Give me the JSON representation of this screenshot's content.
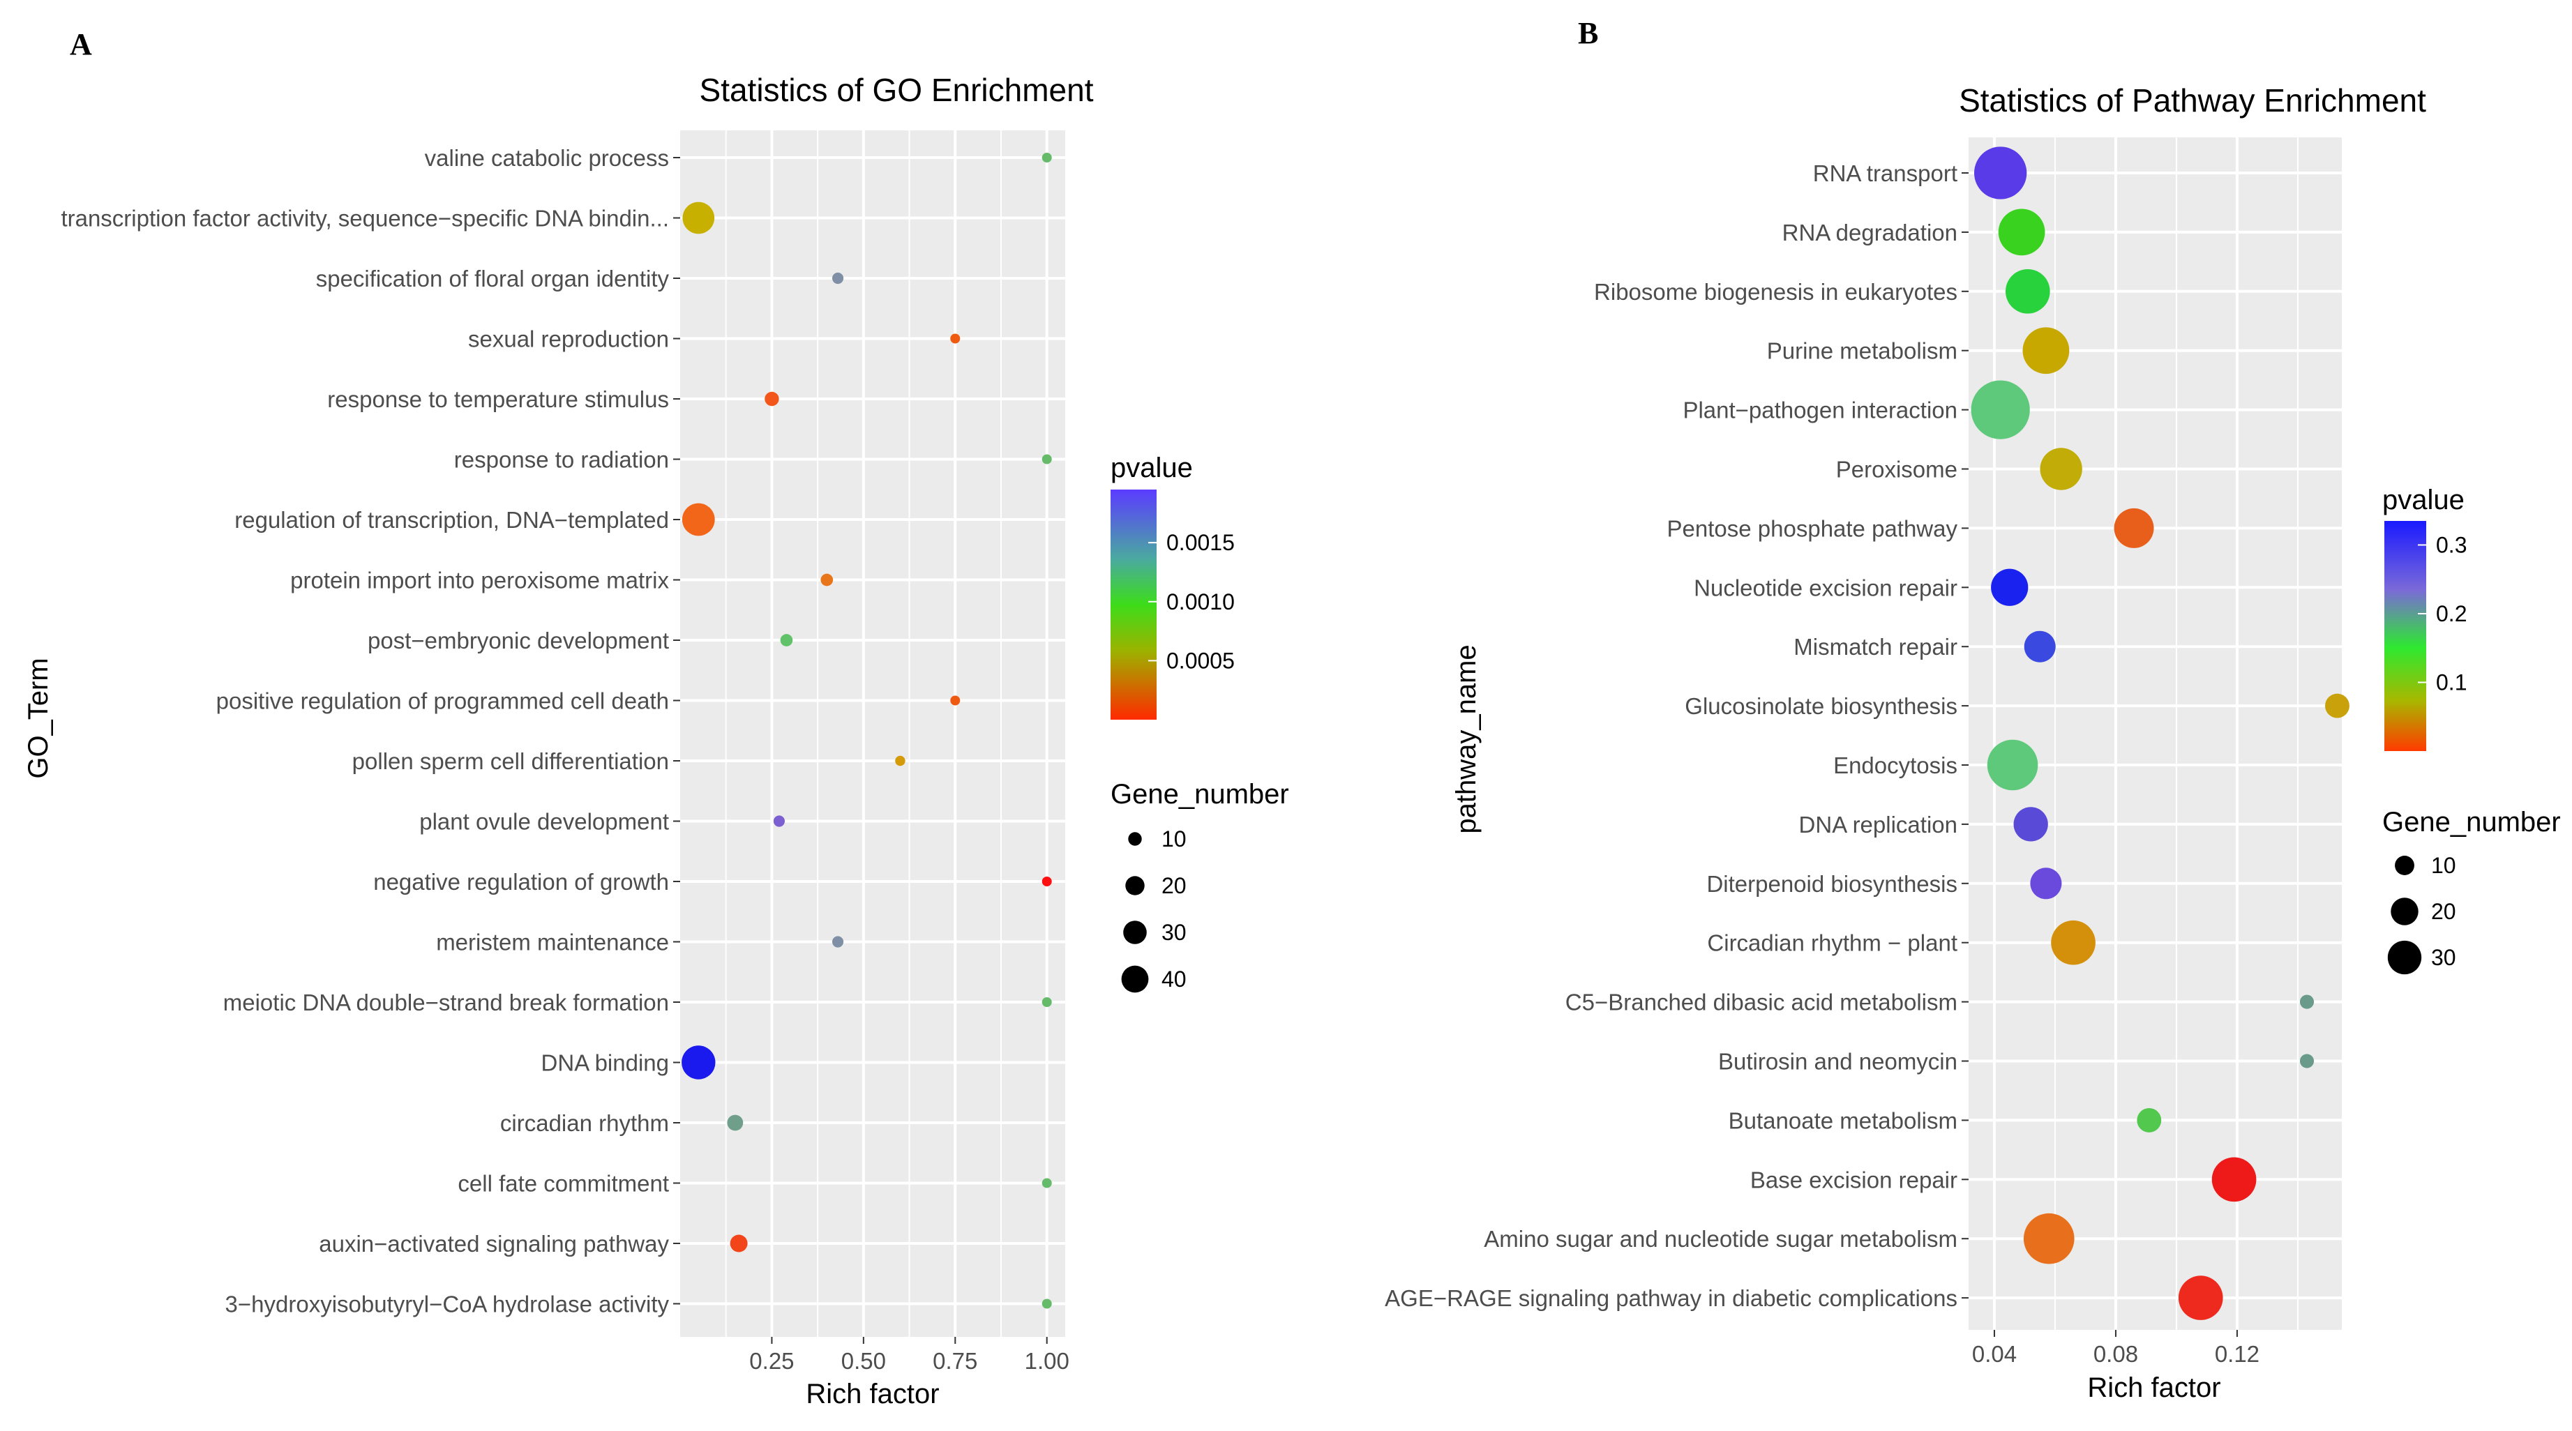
{
  "chart_data": [
    {
      "panel": "A",
      "type": "scatter",
      "title": "Statistics of GO Enrichment",
      "xlabel": "Rich factor",
      "ylabel": "GO_Term",
      "xlim": [
        0.0,
        1.05
      ],
      "xticks": [
        0.25,
        0.5,
        0.75,
        1.0
      ],
      "xtick_labels": [
        "0.25",
        "0.50",
        "0.75",
        "1.00"
      ],
      "color_legend": {
        "title": "pvalue",
        "ticks": [
          0.0015,
          0.001,
          0.0005
        ],
        "tick_labels": [
          "0.0015",
          "0.0010",
          "0.0005"
        ]
      },
      "size_legend": {
        "title": "Gene_number",
        "values": [
          10,
          20,
          30,
          40
        ]
      },
      "points": [
        {
          "term": "valine catabolic process",
          "rich": 1.0,
          "pvalue": 0.00095,
          "genes": 1,
          "color": "#66bb6a"
        },
        {
          "term": "transcription factor activity, sequence−specific DNA bindin...",
          "rich": 0.05,
          "pvalue": 0.00055,
          "genes": 40,
          "color": "#c7b000"
        },
        {
          "term": "specification of floral organ identity",
          "rich": 0.43,
          "pvalue": 0.0013,
          "genes": 5,
          "color": "#7f8fa6"
        },
        {
          "term": "sexual reproduction",
          "rich": 0.75,
          "pvalue": 0.0002,
          "genes": 3,
          "color": "#ee5a12"
        },
        {
          "term": "response to temperature stimulus",
          "rich": 0.25,
          "pvalue": 0.0002,
          "genes": 8,
          "color": "#f2561a"
        },
        {
          "term": "response to radiation",
          "rich": 1.0,
          "pvalue": 0.00095,
          "genes": 1,
          "color": "#66bb6a"
        },
        {
          "term": "regulation of transcription, DNA−templated",
          "rich": 0.05,
          "pvalue": 0.0002,
          "genes": 42,
          "color": "#f2661a"
        },
        {
          "term": "protein import into peroxisome matrix",
          "rich": 0.4,
          "pvalue": 0.0003,
          "genes": 6,
          "color": "#e8751a"
        },
        {
          "term": "post−embryonic development",
          "rich": 0.29,
          "pvalue": 0.001,
          "genes": 6,
          "color": "#62c26a"
        },
        {
          "term": "positive regulation of programmed cell death",
          "rich": 0.75,
          "pvalue": 0.0002,
          "genes": 3,
          "color": "#ee5a12"
        },
        {
          "term": "pollen sperm cell differentiation",
          "rich": 0.6,
          "pvalue": 0.0004,
          "genes": 4,
          "color": "#d49a0a"
        },
        {
          "term": "plant ovule development",
          "rich": 0.27,
          "pvalue": 0.0016,
          "genes": 5,
          "color": "#7c5fd0"
        },
        {
          "term": "negative regulation of growth",
          "rich": 1.0,
          "pvalue": 1e-05,
          "genes": 3,
          "color": "#ff1010"
        },
        {
          "term": "meristem maintenance",
          "rich": 0.43,
          "pvalue": 0.0013,
          "genes": 5,
          "color": "#7f8fa6"
        },
        {
          "term": "meiotic DNA double−strand break formation",
          "rich": 1.0,
          "pvalue": 0.00095,
          "genes": 1,
          "color": "#66bb6a"
        },
        {
          "term": "DNA binding",
          "rich": 0.05,
          "pvalue": 0.0019,
          "genes": 45,
          "color": "#1a1aee"
        },
        {
          "term": "circadian rhythm",
          "rich": 0.15,
          "pvalue": 0.0012,
          "genes": 10,
          "color": "#6f9f8a"
        },
        {
          "term": "cell fate commitment",
          "rich": 1.0,
          "pvalue": 0.00095,
          "genes": 1,
          "color": "#66bb6a"
        },
        {
          "term": "auxin−activated signaling pathway",
          "rich": 0.16,
          "pvalue": 0.00015,
          "genes": 12,
          "color": "#f2461a"
        },
        {
          "term": "3−hydroxyisobutyryl−CoA hydrolase activity",
          "rich": 1.0,
          "pvalue": 0.00095,
          "genes": 1,
          "color": "#66bb6a"
        }
      ]
    },
    {
      "panel": "B",
      "type": "scatter",
      "title": "Statistics of Pathway Enrichment",
      "xlabel": "Rich factor",
      "ylabel": "pathway_name",
      "xlim": [
        0.0315,
        0.1545
      ],
      "xticks": [
        0.04,
        0.08,
        0.12
      ],
      "xtick_labels": [
        "0.04",
        "0.08",
        "0.12"
      ],
      "color_legend": {
        "title": "pvalue",
        "ticks": [
          0.3,
          0.2,
          0.1
        ],
        "tick_labels": [
          "0.3",
          "0.2",
          "0.1"
        ]
      },
      "size_legend": {
        "title": "Gene_number",
        "values": [
          10,
          20,
          30
        ]
      },
      "points": [
        {
          "term": "RNA transport",
          "rich": 0.042,
          "pvalue": 0.3,
          "genes": 28,
          "color": "#5a3be8"
        },
        {
          "term": "RNA degradation",
          "rich": 0.049,
          "pvalue": 0.18,
          "genes": 22,
          "color": "#39d21e"
        },
        {
          "term": "Ribosome biogenesis in eukaryotes",
          "rich": 0.051,
          "pvalue": 0.18,
          "genes": 20,
          "color": "#28d23c"
        },
        {
          "term": "Purine metabolism",
          "rich": 0.057,
          "pvalue": 0.07,
          "genes": 22,
          "color": "#c7a800"
        },
        {
          "term": "Plant−pathogen interaction",
          "rich": 0.042,
          "pvalue": 0.22,
          "genes": 35,
          "color": "#5ec97a"
        },
        {
          "term": "Peroxisome",
          "rich": 0.062,
          "pvalue": 0.07,
          "genes": 18,
          "color": "#c2ad08"
        },
        {
          "term": "Pentose phosphate pathway",
          "rich": 0.086,
          "pvalue": 0.02,
          "genes": 16,
          "color": "#e85f1c"
        },
        {
          "term": "Nucleotide excision repair",
          "rich": 0.045,
          "pvalue": 0.33,
          "genes": 14,
          "color": "#1a22f0"
        },
        {
          "term": "Mismatch repair",
          "rich": 0.055,
          "pvalue": 0.3,
          "genes": 10,
          "color": "#3a4ae0"
        },
        {
          "term": "Glucosinolate biosynthesis",
          "rich": 0.153,
          "pvalue": 0.07,
          "genes": 6,
          "color": "#c9a10a"
        },
        {
          "term": "Endocytosis",
          "rich": 0.046,
          "pvalue": 0.22,
          "genes": 26,
          "color": "#5ec97a"
        },
        {
          "term": "DNA replication",
          "rich": 0.052,
          "pvalue": 0.3,
          "genes": 12,
          "color": "#5a4ad8"
        },
        {
          "term": "Diterpenoid biosynthesis",
          "rich": 0.057,
          "pvalue": 0.28,
          "genes": 10,
          "color": "#6a4adc"
        },
        {
          "term": "Circadian rhythm − plant",
          "rich": 0.066,
          "pvalue": 0.05,
          "genes": 20,
          "color": "#d4900a"
        },
        {
          "term": "C5−Branched dibasic acid metabolism",
          "rich": 0.143,
          "pvalue": 0.22,
          "genes": 2,
          "color": "#6a9a8a"
        },
        {
          "term": "Butirosin and neomycin",
          "rich": 0.143,
          "pvalue": 0.22,
          "genes": 2,
          "color": "#6a9a8a"
        },
        {
          "term": "Butanoate metabolism",
          "rich": 0.091,
          "pvalue": 0.18,
          "genes": 6,
          "color": "#52c84e"
        },
        {
          "term": "Base excision repair",
          "rich": 0.119,
          "pvalue": 0.005,
          "genes": 20,
          "color": "#ee1a1a"
        },
        {
          "term": "Amino sugar and nucleotide sugar metabolism",
          "rich": 0.058,
          "pvalue": 0.03,
          "genes": 26,
          "color": "#e8701c"
        },
        {
          "term": "AGE−RAGE signaling pathway in diabetic complications",
          "rich": 0.108,
          "pvalue": 0.01,
          "genes": 20,
          "color": "#ee2a1e"
        }
      ]
    }
  ]
}
